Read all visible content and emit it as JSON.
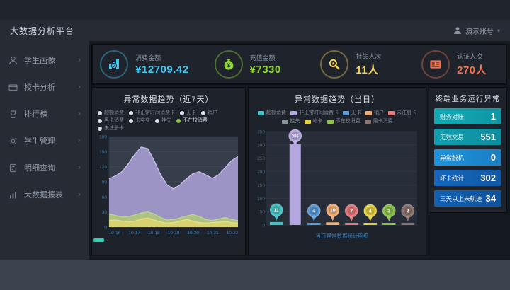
{
  "header": {
    "title": "大数据分析平台",
    "user_name": "演示账号",
    "caret": "▾"
  },
  "sidebar": {
    "items": [
      {
        "label": "学生画像"
      },
      {
        "label": "校卡分析"
      },
      {
        "label": "排行榜"
      },
      {
        "label": "学生管理"
      },
      {
        "label": "明细查询"
      },
      {
        "label": "大数据报表"
      }
    ],
    "chevron": "›"
  },
  "kpis": [
    {
      "label": "消费金额",
      "value": "¥12709.42",
      "color": "#45c6f0",
      "icon": "bar-chart-icon"
    },
    {
      "label": "充值金额",
      "value": "¥7330",
      "color": "#8ed631",
      "icon": "money-bag-icon"
    },
    {
      "label": "挂失人次",
      "value": "11人",
      "color": "#f6d657",
      "icon": "magnifier-icon"
    },
    {
      "label": "认证人次",
      "value": "270人",
      "color": "#f2734d",
      "icon": "id-card-icon"
    }
  ],
  "left_panel": {
    "title": "异常数据趋势（近7天）",
    "legend": [
      {
        "label": "超额消费",
        "selected": false
      },
      {
        "label": "非正常时间消费卡",
        "selected": false
      },
      {
        "label": "无卡",
        "selected": false
      },
      {
        "label": "销户",
        "selected": false
      },
      {
        "label": "黑卡消费",
        "selected": false
      },
      {
        "label": "卡突变",
        "selected": false
      },
      {
        "label": "挂失",
        "selected": false
      },
      {
        "label": "不在校消费",
        "selected": true
      },
      {
        "label": "未注册卡",
        "selected": false
      }
    ]
  },
  "right_panel": {
    "title": "异常数据趋势（当日）",
    "legend": [
      {
        "label": "超额消费",
        "color": "#45c1c4"
      },
      {
        "label": "非正常时间消费卡",
        "color": "#b4a7e0"
      },
      {
        "label": "无卡",
        "color": "#5b9bd5"
      },
      {
        "label": "销户",
        "color": "#f0ab72"
      },
      {
        "label": "未注册卡",
        "color": "#e27a7a"
      },
      {
        "label": "挂失",
        "color": "#8d939c"
      },
      {
        "label": "补卡",
        "color": "#e3cf43"
      },
      {
        "label": "不在校消费",
        "color": "#8bc24a"
      },
      {
        "label": "黑卡消费",
        "color": "#8d7470"
      }
    ],
    "caption": "当日异常数据统计明细"
  },
  "terminal_panel": {
    "title": "终端业务运行异常",
    "rows": [
      {
        "label": "财务对账",
        "value": "1"
      },
      {
        "label": "无效交易",
        "value": "551"
      },
      {
        "label": "异常脱机",
        "value": "0"
      },
      {
        "label": "坏卡统计",
        "value": "302"
      },
      {
        "label": "三天以上未轨迹",
        "value": "34"
      }
    ]
  },
  "chart_data": [
    {
      "type": "area",
      "title": "异常数据趋势（近7天）",
      "x_labels": [
        "10-16",
        "10-17",
        "10-18",
        "10-19",
        "10-20",
        "10-21",
        "10-22"
      ],
      "y_ticks": [
        180,
        150,
        120,
        90,
        60,
        30,
        0
      ],
      "ylim": [
        0,
        180
      ],
      "legend_position": "top",
      "grid": false,
      "series": [
        {
          "name": "非正常时间消费卡",
          "color": "#a79dd1",
          "stroke": "#cfc8f0",
          "values": [
            96,
            102,
            110,
            126,
            145,
            159,
            156,
            132,
            104,
            84,
            76,
            84,
            96,
            106,
            110,
            104,
            97,
            104,
            118,
            132,
            140
          ]
        },
        {
          "name": "不在校消费",
          "color": "#aec87b",
          "stroke": "#c3d795",
          "values": [
            26,
            23,
            20,
            21,
            24,
            28,
            30,
            26,
            19,
            14,
            15,
            18,
            22,
            25,
            21,
            15,
            13,
            16,
            19,
            15,
            13
          ]
        },
        {
          "name": "挂失",
          "color": "#ddd46e",
          "stroke": "#e8e08c",
          "values": [
            13,
            14,
            12,
            10,
            12,
            16,
            18,
            14,
            10,
            8,
            9,
            12,
            15,
            12,
            9,
            8,
            9,
            10,
            11,
            9,
            8
          ]
        }
      ]
    },
    {
      "type": "bar",
      "title": "异常数据趋势（当日）",
      "y_ticks": [
        350,
        300,
        250,
        200,
        150,
        100,
        50,
        0
      ],
      "ylim": [
        0,
        350
      ],
      "grid": false,
      "categories": [
        "超额消费",
        "非正常时间消费卡",
        "无卡",
        "销户",
        "未注册卡",
        "补卡",
        "不在校消费",
        "黑卡消费"
      ],
      "values": [
        11,
        305,
        4,
        10,
        7,
        4,
        3,
        2
      ],
      "colors": [
        "#45c1c4",
        "#b4a7e0",
        "#5b9bd5",
        "#f0ab72",
        "#e27a7a",
        "#e3cf43",
        "#8bc24a",
        "#8d7470"
      ]
    }
  ]
}
